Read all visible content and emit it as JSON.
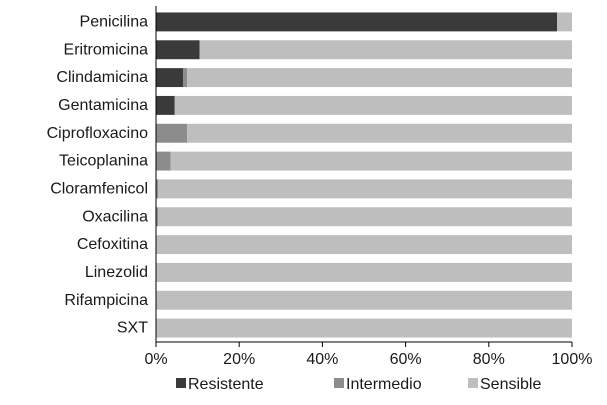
{
  "chart_data": {
    "type": "bar",
    "orientation": "horizontal",
    "stacked": true,
    "categories": [
      "Penicilina",
      "Eritromicina",
      "Clindamicina",
      "Gentamicina",
      "Ciprofloxacino",
      "Teicoplanina",
      "Cloramfenicol",
      "Oxacilina",
      "Cefoxitina",
      "Linezolid",
      "Rifampicina",
      "SXT"
    ],
    "series": [
      {
        "name": "Resistente",
        "color": "#3a3a3a",
        "values": [
          96.4,
          10.5,
          6.5,
          4.5,
          0,
          0,
          0,
          0,
          0,
          0,
          0,
          0
        ]
      },
      {
        "name": "Intermedio",
        "color": "#8c8c8c",
        "values": [
          0,
          0,
          1,
          0,
          7.5,
          3.5,
          0.5,
          0.5,
          0,
          0,
          0,
          0
        ]
      },
      {
        "name": "Sensible",
        "color": "#bebebe",
        "values": [
          3.6,
          89.5,
          92.5,
          95.5,
          92.5,
          96.5,
          99.5,
          99.5,
          100,
          100,
          100,
          100
        ]
      }
    ],
    "xlim": [
      0,
      100
    ],
    "x_ticks": [
      "0%",
      "20%",
      "40%",
      "60%",
      "80%",
      "100%"
    ],
    "grid": false,
    "legend_position": "bottom"
  }
}
